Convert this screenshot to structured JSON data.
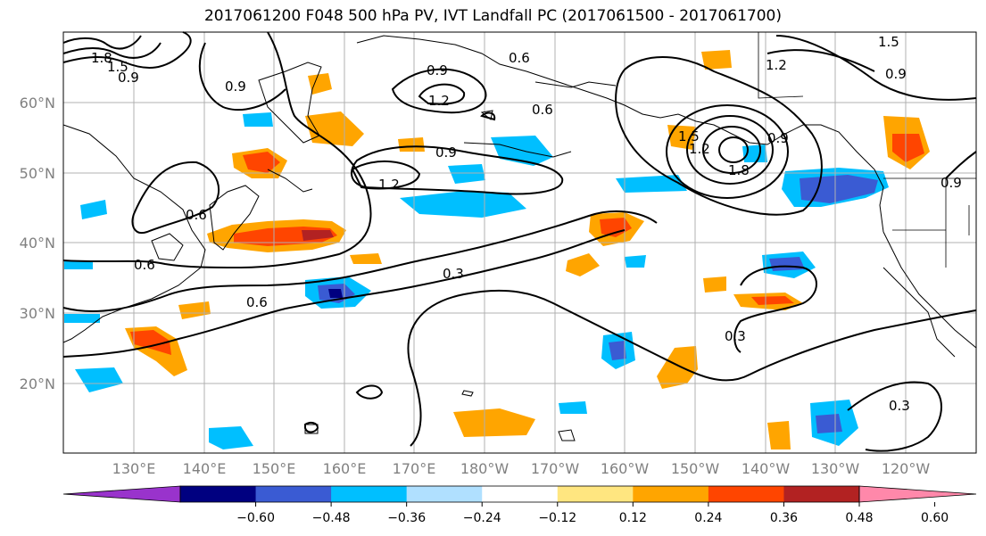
{
  "title": "2017061200 F048 500 hPa PV, IVT Landfall PC (2017061500 - 2017061700)",
  "axes": {
    "lat_labels": [
      "60°N",
      "50°N",
      "40°N",
      "30°N",
      "20°N"
    ],
    "lon_labels": [
      "130°E",
      "140°E",
      "150°E",
      "160°E",
      "170°E",
      "180°W",
      "170°W",
      "160°W",
      "150°W",
      "140°W",
      "130°W",
      "120°W"
    ]
  },
  "contour_labels": [
    "1.8",
    "1.5",
    "0.9",
    "0.9",
    "0.9",
    "1.2",
    "0.6",
    "0.9",
    "1.2",
    "1.5",
    "0.9",
    "1.2",
    "1.8",
    "0.9",
    "1.5",
    "1.2",
    "0.9",
    "0.6",
    "0.6",
    "0.3",
    "0.6",
    "0.3",
    "0.3"
  ],
  "colorbar": {
    "tick_labels": [
      "−0.60",
      "−0.48",
      "−0.36",
      "−0.24",
      "−0.12",
      "0.12",
      "0.24",
      "0.36",
      "0.48",
      "0.60"
    ],
    "colors": [
      "#9933cc",
      "#000080",
      "#3a5bd3",
      "#00bfff",
      "#b0e0ff",
      "#ffffff",
      "#ffe680",
      "#ffa500",
      "#ff4500",
      "#b22222",
      "#ff88aa"
    ]
  },
  "chart_data": {
    "type": "heatmap",
    "title": "2017061200 F048 500 hPa PV, IVT Landfall PC (2017061500 - 2017061700)",
    "lat_range": [
      10,
      70
    ],
    "lon_range": [
      120,
      250
    ],
    "contour_levels": [
      0.3,
      0.6,
      0.9,
      1.2,
      1.5,
      1.8
    ],
    "color_levels": [
      -0.6,
      -0.48,
      -0.36,
      -0.24,
      -0.12,
      0.12,
      0.24,
      0.36,
      0.48,
      0.6
    ]
  }
}
